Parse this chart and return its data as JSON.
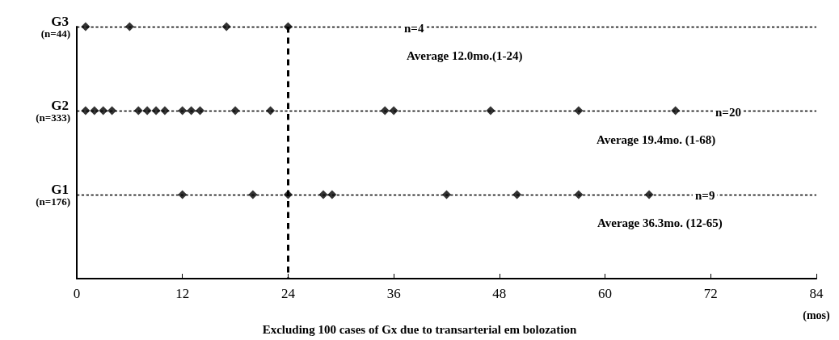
{
  "chart_data": {
    "type": "scatter",
    "orientation": "horizontal",
    "categories": [
      "G3\n(n=44)",
      "G2\n(n=333)",
      "G1\n(n=176)",
      null
    ],
    "xlabel": "(mos)",
    "xlim": [
      0,
      84
    ],
    "xticks": [
      0,
      12,
      24,
      36,
      48,
      60,
      72,
      84
    ],
    "series": [
      {
        "color": "#000000",
        "values": [
          1,
          1,
          12,
          null
        ]
      },
      {
        "color": "#000000",
        "values": [
          6,
          2,
          20,
          null
        ]
      },
      {
        "color": "#000000",
        "values": [
          17,
          3,
          24,
          null
        ]
      },
      {
        "color": "#000000",
        "values": [
          24,
          4,
          28,
          null
        ]
      },
      {
        "color": "#000000",
        "values": [
          null,
          7,
          29,
          null
        ]
      },
      {
        "color": "#000000",
        "values": [
          null,
          8,
          42,
          null
        ]
      },
      {
        "color": "#000000",
        "values": [
          null,
          9,
          50,
          null
        ]
      },
      {
        "color": "#000000",
        "values": [
          null,
          10,
          57,
          null
        ]
      },
      {
        "color": "#000000",
        "values": [
          null,
          12,
          65,
          null
        ]
      },
      {
        "color": "#000000",
        "values": [
          null,
          13,
          null,
          null
        ]
      },
      {
        "color": "#000000",
        "values": [
          null,
          14,
          null,
          null
        ]
      },
      {
        "color": "#000000",
        "values": [
          null,
          18,
          null,
          null
        ]
      },
      {
        "color": "#000000",
        "values": [
          null,
          22,
          null,
          null
        ]
      },
      {
        "color": "#000000",
        "values": [
          null,
          35,
          null,
          null
        ]
      },
      {
        "color": "#000000",
        "values": [
          null,
          36,
          null,
          null
        ]
      },
      {
        "color": "#000000",
        "values": [
          null,
          47,
          null,
          null
        ]
      },
      {
        "color": "#000000",
        "values": [
          null,
          57,
          null,
          null
        ]
      },
      {
        "color": "#000000",
        "values": [
          null,
          68,
          null,
          null
        ]
      }
    ],
    "marker": "diamond",
    "grid": false,
    "ref_lines": [
      {
        "axis": "x",
        "value": 24,
        "line_style": "dashed",
        "color": "#000000"
      },
      {
        "axis": "y",
        "value": "G3\n(n=44)",
        "line_style": "dashed",
        "color": "#000000"
      },
      {
        "axis": "y",
        "value": "G2\n(n=333)",
        "line_style": "dashed",
        "color": "#000000"
      },
      {
        "axis": "y",
        "value": "G1\n(n=176)",
        "line_style": "dashed",
        "color": "#000000"
      }
    ],
    "annotations": [
      "n=4",
      "Average 12.0mo.(1-24)",
      "n=20",
      "Average 19.4mo. (1-68)",
      "n=9",
      "Average 36.3mo. (12-65)",
      "Excluding 100 cases of Gx due to transarterial em bolozation"
    ]
  }
}
